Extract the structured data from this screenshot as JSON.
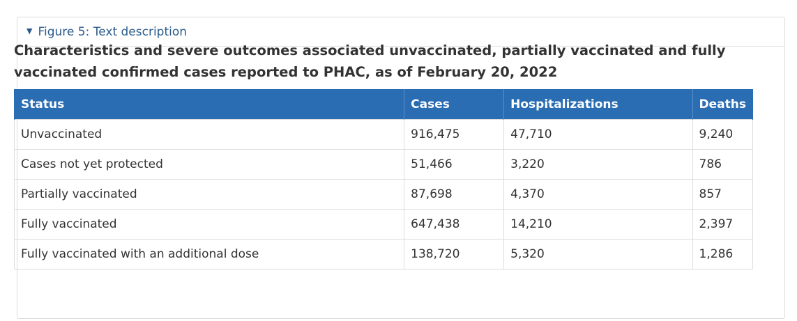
{
  "details": {
    "summary_label": "Figure 5: Text description"
  },
  "caption": "Characteristics and severe outcomes associated unvaccinated, partially vaccinated and fully vaccinated confirmed cases reported to PHAC, as of February 20, 2022",
  "table": {
    "headers": [
      "Status",
      "Cases",
      "Hospitalizations",
      "Deaths"
    ],
    "rows": [
      [
        "Unvaccinated",
        "916,475",
        "47,710",
        "9,240"
      ],
      [
        "Cases not yet protected",
        "51,466",
        "3,220",
        "786"
      ],
      [
        "Partially vaccinated",
        "87,698",
        "4,370",
        "857"
      ],
      [
        "Fully vaccinated",
        "647,438",
        "14,210",
        "2,397"
      ],
      [
        "Fully vaccinated with an additional dose",
        "138,720",
        "5,320",
        "1,286"
      ]
    ]
  },
  "colors": {
    "header_bg": "#2a6db3",
    "link": "#2b5b8c"
  }
}
